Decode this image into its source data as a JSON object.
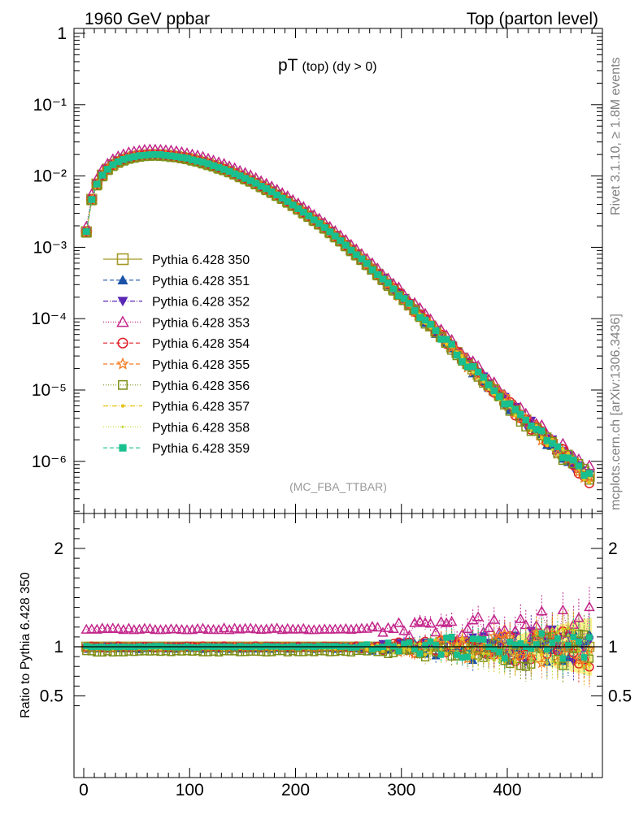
{
  "header": {
    "left": "1960 GeV ppbar",
    "right": "Top (parton level)"
  },
  "side": {
    "rivet": "Rivet 3.1.10, ≥ 1.8M events",
    "mcplots": "mcplots.cern.ch [arXiv:1306.3436]"
  },
  "chart_data": {
    "type": "line",
    "title_main": "pT",
    "title_sub": "(top) (dy > 0)",
    "analysis_tag": "(MC_FBA_TTBAR)",
    "ylabel_ratio": "Ratio to Pythia 6.428 350",
    "xlim": [
      -10,
      490
    ],
    "ylim_main": [
      2e-07,
      1.2
    ],
    "ylim_ratio": [
      0.35,
      2.3
    ],
    "yscale_main": "log",
    "x_ticks": [
      "0",
      "100",
      "200",
      "300",
      "400"
    ],
    "y_ticks_main": [
      "1",
      "10⁻¹",
      "10⁻²",
      "10⁻³",
      "10⁻⁴",
      "10⁻⁵",
      "10⁻⁶"
    ],
    "y_ticks_ratio": [
      "0.5",
      "1",
      "2"
    ],
    "legend_position": "left-middle",
    "reference_x": [
      2.5,
      7.5,
      12.5,
      17.5,
      22.5,
      27.5,
      32.5,
      37.5,
      42.5,
      47.5,
      52.5,
      57.5,
      62.5,
      67.5,
      72.5,
      77.5,
      82.5,
      87.5,
      92.5,
      97.5,
      102.5,
      107.5,
      112.5,
      117.5,
      122.5,
      127.5,
      132.5,
      137.5,
      142.5,
      147.5,
      152.5,
      157.5,
      162.5,
      167.5,
      172.5,
      177.5,
      182.5,
      187.5,
      192.5,
      197.5,
      202.5,
      207.5,
      212.5,
      217.5,
      222.5,
      227.5,
      232.5,
      237.5,
      242.5,
      247.5,
      252.5,
      257.5,
      262.5,
      267.5,
      272.5,
      277.5,
      282.5,
      287.5,
      292.5,
      297.5,
      302.5,
      307.5,
      312.5,
      317.5,
      322.5,
      327.5,
      332.5,
      337.5,
      342.5,
      347.5,
      352.5,
      357.5,
      362.5,
      367.5,
      372.5,
      377.5,
      382.5,
      387.5,
      392.5,
      397.5,
      402.5,
      407.5,
      412.5,
      417.5,
      422.5,
      427.5,
      432.5,
      437.5,
      442.5,
      447.5,
      452.5,
      457.5,
      462.5,
      467.5,
      472.5,
      477.5
    ],
    "reference_y": [
      0.00165,
      0.0047,
      0.0077,
      0.0103,
      0.0125,
      0.0144,
      0.0159,
      0.0171,
      0.018,
      0.0187,
      0.0192,
      0.0196,
      0.0198,
      0.0199,
      0.0198,
      0.0195,
      0.0192,
      0.0188,
      0.0183,
      0.0177,
      0.017,
      0.0163,
      0.0156,
      0.0148,
      0.014,
      0.0132,
      0.0124,
      0.0116,
      0.0108,
      0.01,
      0.0093,
      0.0086,
      0.0079,
      0.0072,
      0.0066,
      0.006,
      0.0054,
      0.0049,
      0.0044,
      0.0039,
      0.0035,
      0.0031,
      0.00275,
      0.00243,
      0.00214,
      0.00188,
      0.00164,
      0.00143,
      0.00124,
      0.00107,
      0.00092,
      0.00079,
      0.00068,
      0.00058,
      0.000495,
      0.00042,
      0.00036,
      0.000305,
      0.00026,
      0.00022,
      0.000186,
      0.000157,
      0.000133,
      0.000112,
      9.4e-05,
      7.9e-05,
      6.7e-05,
      5.6e-05,
      4.7e-05,
      4e-05,
      3.35e-05,
      2.8e-05,
      2.35e-05,
      1.98e-05,
      1.66e-05,
      1.4e-05,
      1.18e-05,
      1e-05,
      8.5e-06,
      7.2e-06,
      6.1e-06,
      5.2e-06,
      4.4e-06,
      3.8e-06,
      3.2e-06,
      2.75e-06,
      2.35e-06,
      2e-06,
      1.72e-06,
      1.48e-06,
      1.28e-06,
      1.1e-06,
      9.5e-07,
      8.2e-07,
      7.1e-07,
      6.2e-07
    ],
    "series": [
      {
        "name": "Pythia 6.428 350",
        "color": "#a59826",
        "marker": "square-open",
        "dash": "solid",
        "ratio": 1.0
      },
      {
        "name": "Pythia 6.428 351",
        "color": "#1952a6",
        "marker": "triangle-up-filled",
        "dash": "5,3",
        "ratio": 0.98
      },
      {
        "name": "Pythia 6.428 352",
        "color": "#5a27b5",
        "marker": "triangle-down-filled",
        "dash": "6,2,1,2",
        "ratio": 1.0
      },
      {
        "name": "Pythia 6.428 353",
        "color": "#c2258a",
        "marker": "triangle-up-open",
        "dash": "1,2",
        "ratio": 1.18
      },
      {
        "name": "Pythia 6.428 354",
        "color": "#e01c24",
        "marker": "circle-open",
        "dash": "5,3",
        "ratio": 1.0
      },
      {
        "name": "Pythia 6.428 355",
        "color": "#f47a20",
        "marker": "star-open",
        "dash": "5,3",
        "ratio": 0.99
      },
      {
        "name": "Pythia 6.428 356",
        "color": "#7e8f18",
        "marker": "square-open-small",
        "dash": "1,2",
        "ratio": 0.95
      },
      {
        "name": "Pythia 6.428 357",
        "color": "#e6c21a",
        "marker": "dot",
        "dash": "6,2,1,2",
        "ratio": 0.99
      },
      {
        "name": "Pythia 6.428 358",
        "color": "#c9d83a",
        "marker": "dot-small",
        "dash": "1,2",
        "ratio": 0.98
      },
      {
        "name": "Pythia 6.428 359",
        "color": "#19bf8f",
        "marker": "square-filled",
        "dash": "5,3",
        "ratio": 1.0
      }
    ]
  }
}
